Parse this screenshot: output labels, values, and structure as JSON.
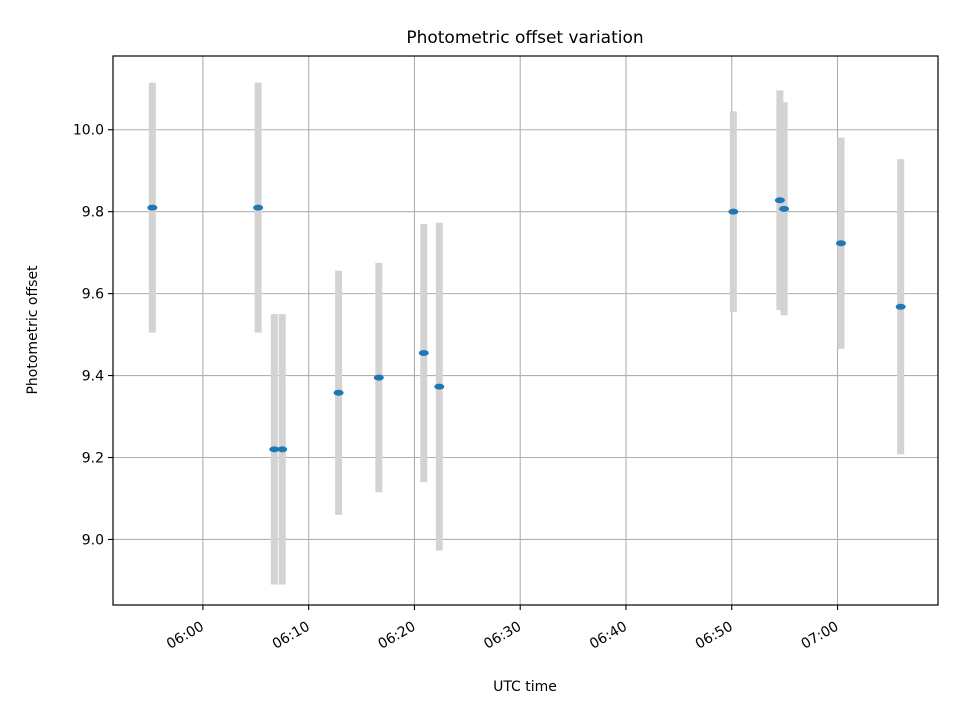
{
  "chart_data": {
    "type": "scatter",
    "title": "Photometric offset variation",
    "xlabel": "UTC time",
    "ylabel": "Photometric offset",
    "x_unit": "minutes after 06:00 UTC",
    "xlim": [
      -8.5,
      69.5
    ],
    "ylim": [
      8.84,
      10.18
    ],
    "yticks": [
      9.0,
      9.2,
      9.4,
      9.6,
      9.8,
      10.0
    ],
    "ytick_labels": [
      "9.0",
      "9.2",
      "9.4",
      "9.6",
      "9.8",
      "10.0"
    ],
    "xticks": [
      0,
      10,
      20,
      30,
      40,
      50,
      60
    ],
    "xtick_labels": [
      "06:00",
      "06:10",
      "06:20",
      "06:30",
      "06:40",
      "06:50",
      "07:00"
    ],
    "grid": true,
    "errorbar_color": "#d3d3d3",
    "marker_color": "#1f77b4",
    "points": [
      {
        "time": "05:55:13",
        "x": -4.78,
        "y": 9.81,
        "err": 0.305
      },
      {
        "time": "06:05:13",
        "x": 5.22,
        "y": 9.81,
        "err": 0.305
      },
      {
        "time": "06:06:45",
        "x": 6.75,
        "y": 9.22,
        "err": 0.33
      },
      {
        "time": "06:07:30",
        "x": 7.5,
        "y": 9.22,
        "err": 0.33
      },
      {
        "time": "06:12:50",
        "x": 12.83,
        "y": 9.358,
        "err": 0.298
      },
      {
        "time": "06:16:38",
        "x": 16.63,
        "y": 9.395,
        "err": 0.28
      },
      {
        "time": "06:20:53",
        "x": 20.88,
        "y": 9.455,
        "err": 0.315
      },
      {
        "time": "06:22:21",
        "x": 22.35,
        "y": 9.373,
        "err": 0.4
      },
      {
        "time": "06:50:09",
        "x": 50.15,
        "y": 9.8,
        "err": 0.245
      },
      {
        "time": "06:54:33",
        "x": 54.55,
        "y": 9.828,
        "err": 0.268
      },
      {
        "time": "06:54:57",
        "x": 54.95,
        "y": 9.807,
        "err": 0.26
      },
      {
        "time": "07:00:20",
        "x": 60.33,
        "y": 9.723,
        "err": 0.258
      },
      {
        "time": "07:05:58",
        "x": 65.97,
        "y": 9.568,
        "err": 0.36
      }
    ]
  }
}
